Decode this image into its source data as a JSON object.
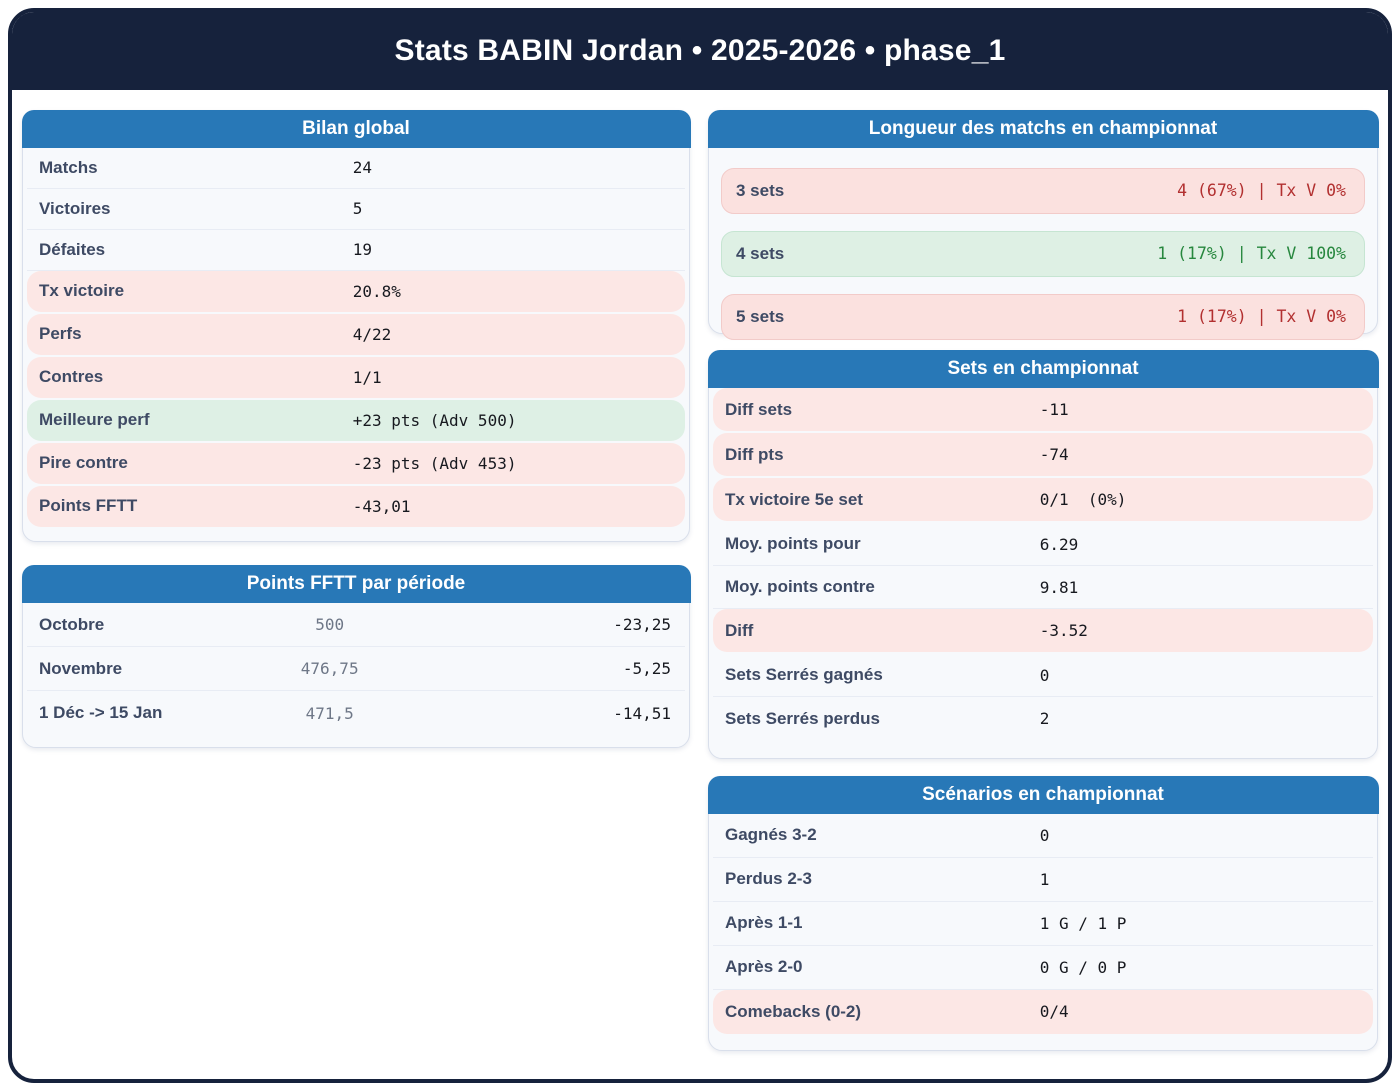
{
  "header": {
    "title": "Stats BABIN Jordan • 2025-2026 • phase_1"
  },
  "colors": {
    "navy": "#16223c",
    "blue": "#2878b7",
    "pink": "#fce7e5",
    "green": "#def0e5",
    "pill-pink": "#fbe1df",
    "pill-green": "#def0e4",
    "pink-border": "#f2cbc9",
    "green-border": "#c6e5d2",
    "red-text": "#b23030",
    "green-text": "#27873e",
    "label": "#3e4a64",
    "value": "#17191f",
    "muted": "#6e7787",
    "separator": "#e8ecf4",
    "card-border": "#d9dfeb",
    "body-bg": "#f7f9fc"
  },
  "cards": {
    "bilan": {
      "title": "Bilan global",
      "rows": [
        {
          "label": "Matchs",
          "value": "24",
          "tone": "normal"
        },
        {
          "label": "Victoires",
          "value": "5",
          "tone": "normal"
        },
        {
          "label": "Défaites",
          "value": "19",
          "tone": "normal"
        },
        {
          "label": "Tx victoire",
          "value": "20.8%",
          "tone": "bad"
        },
        {
          "label": "Perfs",
          "value": "4/22",
          "tone": "bad"
        },
        {
          "label": "Contres",
          "value": "1/1",
          "tone": "bad"
        },
        {
          "label": "Meilleure perf",
          "value": "+23 pts (Adv 500)",
          "tone": "good"
        },
        {
          "label": "Pire contre",
          "value": "-23 pts (Adv 453)",
          "tone": "bad"
        },
        {
          "label": "Points FFTT",
          "value": "-43,01",
          "tone": "bad"
        }
      ]
    },
    "fftt_periods": {
      "title": "Points FFTT par période",
      "rows": [
        {
          "label": "Octobre",
          "mid": "500",
          "value": "-23,25",
          "tone": "normal"
        },
        {
          "label": "Novembre",
          "mid": "476,75",
          "value": "-5,25",
          "tone": "normal"
        },
        {
          "label": "1 Déc -> 15 Jan",
          "mid": "471,5",
          "value": "-14,51",
          "tone": "normal"
        }
      ]
    },
    "match_length": {
      "title": "Longueur des matchs en championnat",
      "rows": [
        {
          "label": "3 sets",
          "value": "4 (67%) | Tx V 0%",
          "tone": "bad"
        },
        {
          "label": "4 sets",
          "value": "1 (17%) | Tx V 100%",
          "tone": "good"
        },
        {
          "label": "5 sets",
          "value": "1 (17%) | Tx V 0%",
          "tone": "bad"
        }
      ]
    },
    "sets": {
      "title": "Sets en championnat",
      "rows": [
        {
          "label": "Diff sets",
          "value": "-11",
          "tone": "bad"
        },
        {
          "label": "Diff pts",
          "value": "-74",
          "tone": "bad"
        },
        {
          "label": "Tx victoire 5e set",
          "value": "0/1  (0%)",
          "tone": "bad"
        },
        {
          "label": "Moy. points pour",
          "value": "6.29",
          "tone": "normal"
        },
        {
          "label": "Moy. points contre",
          "value": "9.81",
          "tone": "normal"
        },
        {
          "label": "Diff",
          "value": "-3.52",
          "tone": "bad"
        },
        {
          "label": "Sets Serrés gagnés",
          "value": "0",
          "tone": "normal"
        },
        {
          "label": "Sets Serrés perdus",
          "value": "2",
          "tone": "normal"
        }
      ]
    },
    "scenarios": {
      "title": "Scénarios en championnat",
      "rows": [
        {
          "label": "Gagnés 3-2",
          "value": "0",
          "tone": "normal"
        },
        {
          "label": "Perdus 2-3",
          "value": "1",
          "tone": "normal"
        },
        {
          "label": "Après 1-1",
          "value": "1 G / 1 P",
          "tone": "normal"
        },
        {
          "label": "Après 2-0",
          "value": "0 G / 0 P",
          "tone": "normal"
        },
        {
          "label": "Comebacks (0-2)",
          "value": "0/4",
          "tone": "bad"
        }
      ]
    }
  }
}
